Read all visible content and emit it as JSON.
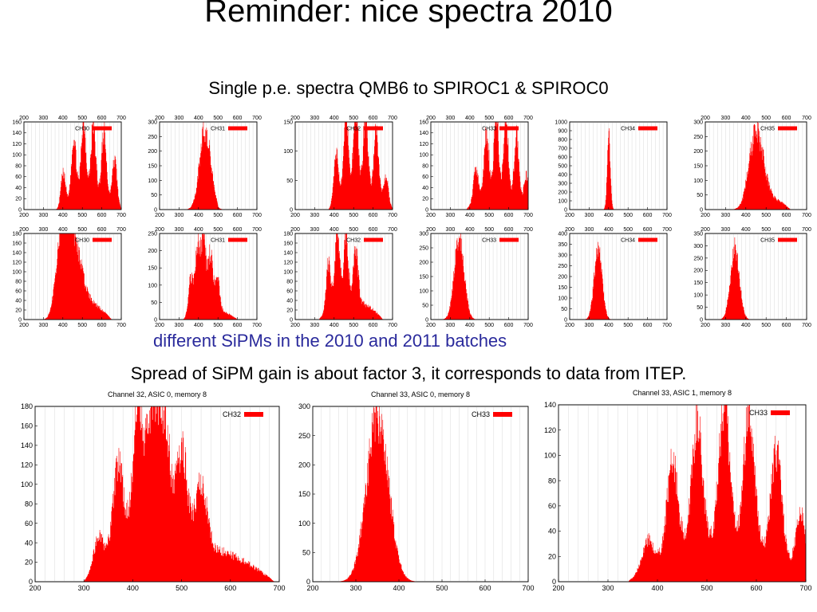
{
  "slide": {
    "title": "Reminder: nice spectra 2010",
    "subtitle": "Single p.e. spectra QMB6 to SPIROC1 & SPIROC0",
    "batch_note": "different SiPMs in the 2010 and 2011 batches",
    "spread_note": "Spread of SiPM gain is about factor 3, it corresponds to data from ITEP."
  },
  "colors": {
    "histogram": "#ff0000",
    "grid": "#d9d9d9",
    "axis": "#000000",
    "batch_note": "#2a2a9c"
  },
  "chart_data": [
    {
      "type": "bar",
      "legend": "CH30",
      "xlim": [
        200,
        700
      ],
      "ylim": [
        0,
        160
      ],
      "yticks": [
        0,
        20,
        40,
        60,
        80,
        100,
        120,
        140,
        160
      ],
      "peaks": [
        {
          "x": 400,
          "h": 60
        },
        {
          "x": 455,
          "h": 115
        },
        {
          "x": 505,
          "h": 140
        },
        {
          "x": 555,
          "h": 128
        },
        {
          "x": 610,
          "h": 118
        },
        {
          "x": 665,
          "h": 80
        }
      ],
      "base": [
        380,
        700,
        30
      ],
      "x_top_ticks": true
    },
    {
      "type": "bar",
      "legend": "CH31",
      "xlim": [
        200,
        700
      ],
      "ylim": [
        0,
        300
      ],
      "yticks": [
        0,
        50,
        100,
        150,
        200,
        250,
        300
      ],
      "peaks": [
        {
          "x": 430,
          "h": 220,
          "w": 28
        }
      ],
      "base": [
        390,
        500,
        60
      ],
      "x_top_ticks": true
    },
    {
      "type": "bar",
      "legend": "CH32",
      "xlim": [
        200,
        700
      ],
      "ylim": [
        0,
        150
      ],
      "yticks": [
        0,
        50,
        100,
        150
      ],
      "peaks": [
        {
          "x": 410,
          "h": 80
        },
        {
          "x": 460,
          "h": 140
        },
        {
          "x": 510,
          "h": 150
        },
        {
          "x": 560,
          "h": 128
        },
        {
          "x": 615,
          "h": 112
        },
        {
          "x": 665,
          "h": 45
        }
      ],
      "base": [
        370,
        700,
        35
      ],
      "x_top_ticks": true
    },
    {
      "type": "bar",
      "legend": "CH33",
      "xlim": [
        200,
        700
      ],
      "ylim": [
        0,
        160
      ],
      "yticks": [
        0,
        20,
        40,
        60,
        80,
        100,
        120,
        140,
        160
      ],
      "peaks": [
        {
          "x": 430,
          "h": 60
        },
        {
          "x": 485,
          "h": 120
        },
        {
          "x": 535,
          "h": 150
        },
        {
          "x": 585,
          "h": 140
        },
        {
          "x": 640,
          "h": 118
        },
        {
          "x": 690,
          "h": 62
        }
      ],
      "base": [
        380,
        700,
        30
      ],
      "x_top_ticks": true
    },
    {
      "type": "bar",
      "legend": "CH34",
      "xlim": [
        200,
        700
      ],
      "ylim": [
        0,
        1000
      ],
      "yticks": [
        0,
        100,
        200,
        300,
        400,
        500,
        600,
        700,
        800,
        900,
        1000
      ],
      "peaks": [
        {
          "x": 400,
          "h": 880,
          "w": 8
        }
      ],
      "base": [
        380,
        420,
        0
      ],
      "x_top_ticks": false
    },
    {
      "type": "bar",
      "legend": "CH35",
      "xlim": [
        200,
        700
      ],
      "ylim": [
        0,
        300
      ],
      "yticks": [
        0,
        50,
        100,
        150,
        200,
        250,
        300
      ],
      "peaks": [
        {
          "x": 450,
          "h": 240,
          "w": 35
        }
      ],
      "base": [
        380,
        620,
        40
      ],
      "x_top_ticks": true
    },
    {
      "type": "bar",
      "legend": "CH30",
      "xlim": [
        200,
        700
      ],
      "ylim": [
        0,
        180
      ],
      "yticks": [
        0,
        20,
        40,
        60,
        80,
        100,
        120,
        140,
        160,
        180
      ],
      "peaks": [
        {
          "x": 400,
          "h": 165,
          "w": 30
        },
        {
          "x": 450,
          "h": 130,
          "w": 40
        }
      ],
      "base": [
        320,
        650,
        40
      ],
      "x_top_ticks": true
    },
    {
      "type": "bar",
      "legend": "CH31",
      "xlim": [
        200,
        700
      ],
      "ylim": [
        0,
        250
      ],
      "yticks": [
        0,
        50,
        100,
        150,
        200,
        250
      ],
      "peaks": [
        {
          "x": 360,
          "h": 110
        },
        {
          "x": 395,
          "h": 190
        },
        {
          "x": 425,
          "h": 215
        },
        {
          "x": 460,
          "h": 165
        },
        {
          "x": 495,
          "h": 100
        }
      ],
      "base": [
        320,
        600,
        30
      ],
      "x_top_ticks": true
    },
    {
      "type": "bar",
      "legend": "CH32",
      "xlim": [
        200,
        700
      ],
      "ylim": [
        0,
        180
      ],
      "yticks": [
        0,
        20,
        40,
        60,
        80,
        100,
        120,
        140,
        160,
        180
      ],
      "peaks": [
        {
          "x": 370,
          "h": 100
        },
        {
          "x": 415,
          "h": 160
        },
        {
          "x": 460,
          "h": 140
        },
        {
          "x": 510,
          "h": 110
        }
      ],
      "base": [
        320,
        650,
        40
      ],
      "x_top_ticks": true
    },
    {
      "type": "bar",
      "legend": "CH33",
      "xlim": [
        200,
        700
      ],
      "ylim": [
        0,
        300
      ],
      "yticks": [
        0,
        50,
        100,
        150,
        200,
        250,
        300
      ],
      "peaks": [
        {
          "x": 345,
          "h": 290,
          "w": 25
        }
      ],
      "base": [
        290,
        450,
        0
      ],
      "x_top_ticks": true
    },
    {
      "type": "bar",
      "legend": "CH34",
      "xlim": [
        200,
        700
      ],
      "ylim": [
        0,
        400
      ],
      "yticks": [
        0,
        50,
        100,
        150,
        200,
        250,
        300,
        350,
        400
      ],
      "peaks": [
        {
          "x": 345,
          "h": 345,
          "w": 20
        }
      ],
      "base": [
        290,
        440,
        0
      ],
      "x_top_ticks": true
    },
    {
      "type": "bar",
      "legend": "CH35",
      "xlim": [
        200,
        700
      ],
      "ylim": [
        0,
        350
      ],
      "yticks": [
        0,
        50,
        100,
        150,
        200,
        250,
        300,
        350
      ],
      "peaks": [
        {
          "x": 345,
          "h": 300,
          "w": 22
        }
      ],
      "base": [
        290,
        450,
        0
      ],
      "x_top_ticks": true
    },
    {
      "type": "bar",
      "title": "Channel 32, ASIC 0, memory 8",
      "legend": "CH32",
      "xlim": [
        200,
        700
      ],
      "ylim": [
        0,
        180
      ],
      "yticks": [
        0,
        20,
        40,
        60,
        80,
        100,
        120,
        140,
        160,
        180
      ],
      "peaks": [
        {
          "x": 330,
          "h": 35
        },
        {
          "x": 370,
          "h": 100
        },
        {
          "x": 410,
          "h": 145
        },
        {
          "x": 440,
          "h": 150
        },
        {
          "x": 465,
          "h": 130
        },
        {
          "x": 500,
          "h": 100
        },
        {
          "x": 540,
          "h": 70
        }
      ],
      "base": [
        300,
        690,
        40
      ],
      "x_top_ticks": false
    },
    {
      "type": "bar",
      "title": "Channel 33, ASIC 0, memory 8",
      "legend": "CH33",
      "xlim": [
        200,
        700
      ],
      "ylim": [
        0,
        300
      ],
      "yticks": [
        0,
        50,
        100,
        150,
        200,
        250,
        300
      ],
      "peaks": [
        {
          "x": 350,
          "h": 290,
          "w": 25
        }
      ],
      "base": [
        290,
        450,
        0
      ],
      "x_top_ticks": false
    },
    {
      "type": "bar",
      "title": "Channel 33, ASIC 1, memory 8",
      "legend": "CH33",
      "xlim": [
        200,
        700
      ],
      "ylim": [
        0,
        140
      ],
      "yticks": [
        0,
        20,
        40,
        60,
        80,
        100,
        120,
        140
      ],
      "peaks": [
        {
          "x": 380,
          "h": 22
        },
        {
          "x": 430,
          "h": 75
        },
        {
          "x": 480,
          "h": 100
        },
        {
          "x": 535,
          "h": 115
        },
        {
          "x": 585,
          "h": 115
        },
        {
          "x": 640,
          "h": 90
        },
        {
          "x": 690,
          "h": 50
        }
      ],
      "base": [
        340,
        700,
        30
      ],
      "x_top_ticks": false
    }
  ]
}
